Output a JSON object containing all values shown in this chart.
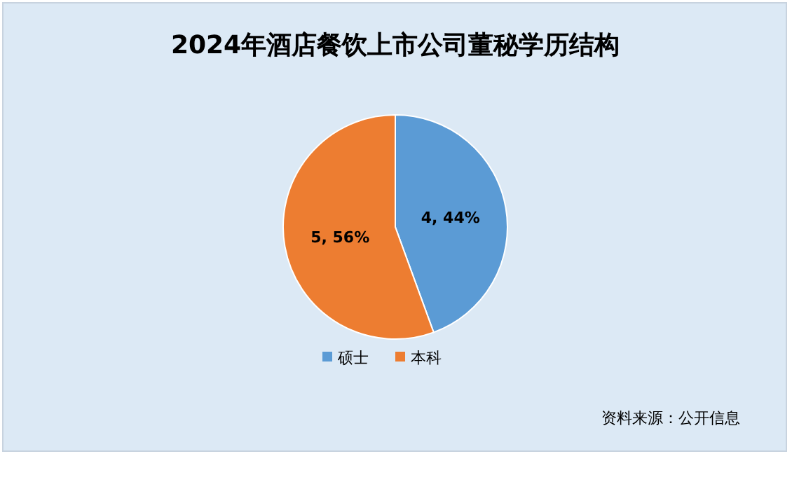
{
  "chart_data": {
    "type": "pie",
    "title": "2024年酒店餐饮上市公司董秘学历结构",
    "categories": [
      "硕士",
      "本科"
    ],
    "values": [
      4,
      5
    ],
    "value_labels": [
      "4, 44%",
      "5, 56%"
    ],
    "colors": [
      "#5b9bd5",
      "#ed7d31"
    ],
    "legend": "bottom",
    "annotations": [
      "资料来源：公开信息"
    ]
  }
}
